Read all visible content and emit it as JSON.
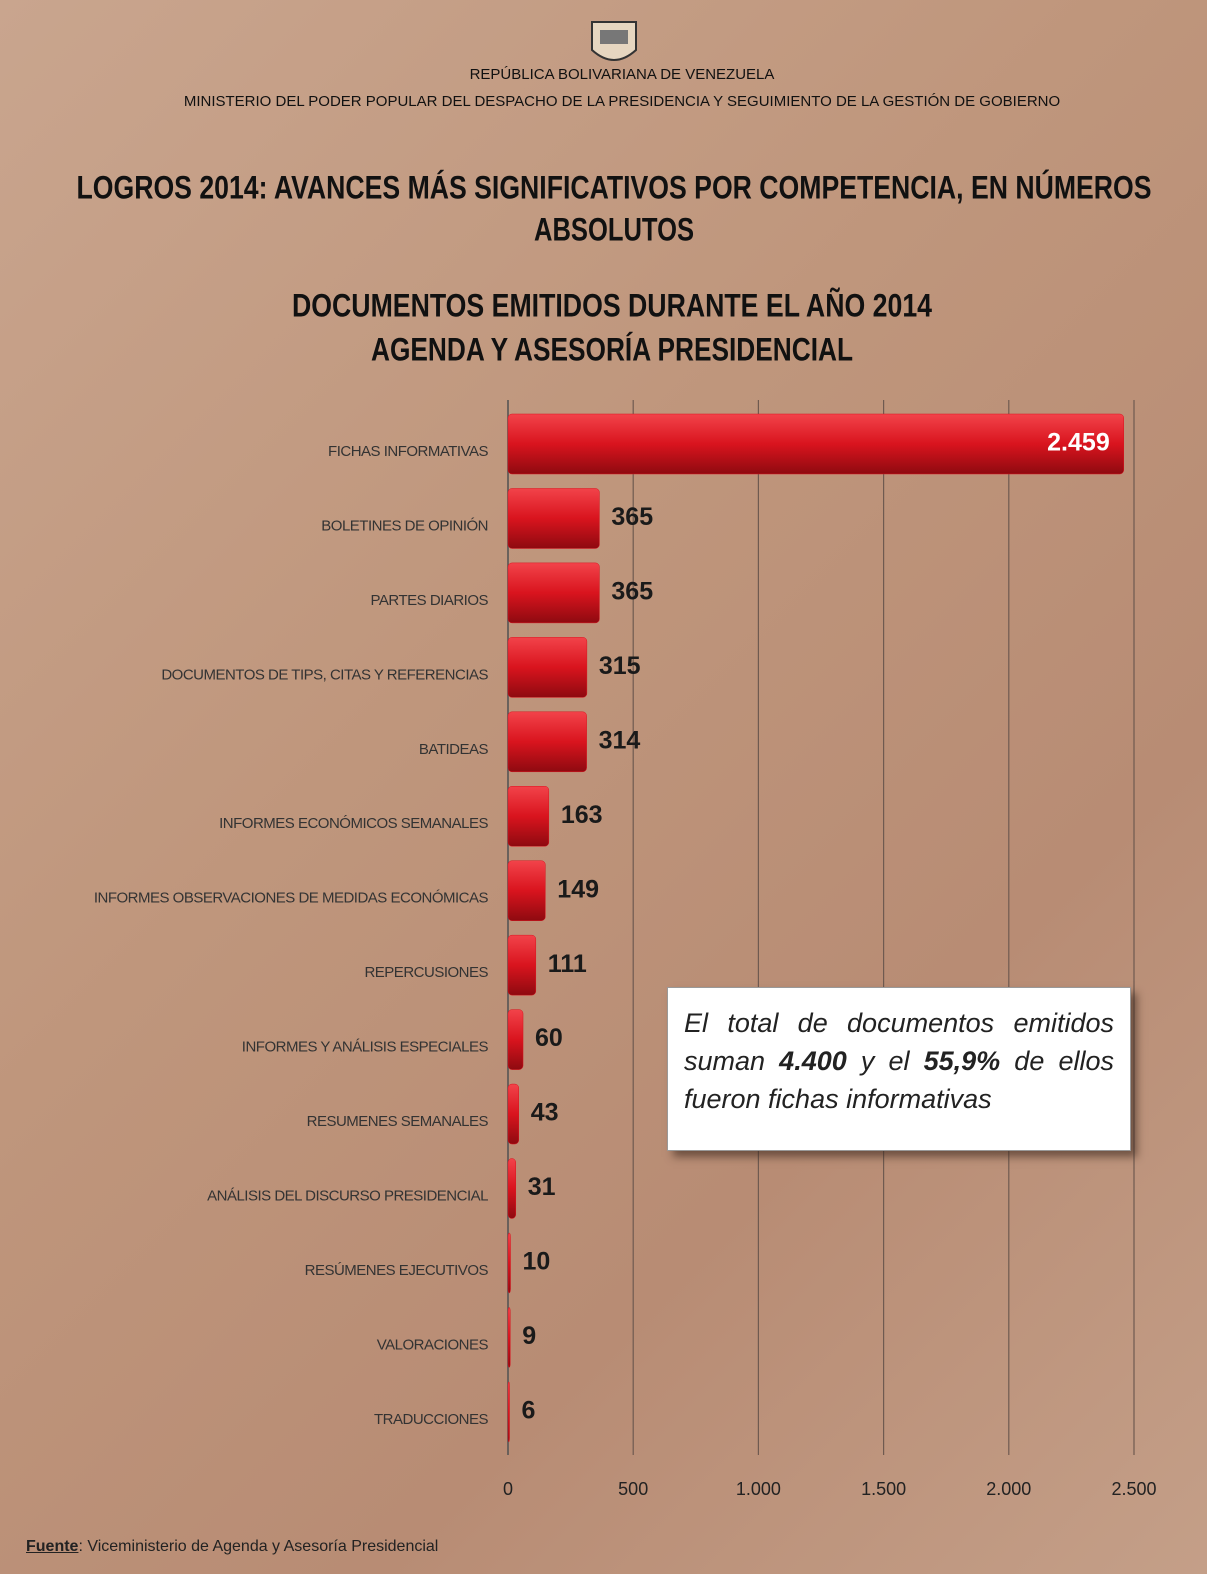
{
  "header": {
    "country": "REPÚBLICA BOLIVARIANA DE VENEZUELA",
    "ministry": "MINISTERIO DEL PODER POPULAR DEL DESPACHO DE LA PRESIDENCIA Y SEGUIMIENTO DE LA GESTIÓN DE GOBIERNO",
    "title": [
      "LOGROS 2014: AVANCES MÁS SIGNIFICATIVOS POR COMPETENCIA, EN NÚMEROS",
      "ABSOLUTOS"
    ]
  },
  "chart_data": {
    "type": "hbar",
    "title": [
      "DOCUMENTOS EMITIDOS DURANTE EL AÑO 2014",
      "AGENDA Y ASESORÍA PRESIDENCIAL"
    ],
    "categories": [
      "FICHAS INFORMATIVAS",
      "BOLETINES DE OPINIÓN",
      "PARTES DIARIOS",
      "DOCUMENTOS DE TIPS, CITAS Y REFERENCIAS",
      "BATIDEAS",
      "INFORMES ECONÓMICOS SEMANALES",
      "INFORMES OBSERVACIONES DE MEDIDAS ECONÓMICAS",
      "REPERCUSIONES",
      "INFORMES Y ANÁLISIS ESPECIALES",
      "RESUMENES SEMANALES",
      "ANÁLISIS DEL DISCURSO PRESIDENCIAL",
      "RESÚMENES EJECUTIVOS",
      "VALORACIONES",
      "TRADUCCIONES"
    ],
    "values": [
      2459,
      365,
      365,
      315,
      314,
      163,
      149,
      111,
      60,
      43,
      31,
      10,
      9,
      6
    ],
    "value_labels": [
      "2.459",
      "365",
      "365",
      "315",
      "314",
      "163",
      "149",
      "111",
      "60",
      "43",
      "31",
      "10",
      "9",
      "6"
    ],
    "color": "#d9141e",
    "xlim": [
      0,
      2500
    ],
    "xticks": [
      0,
      500,
      {
        "value": 1000,
        "label": "1.000"
      },
      {
        "value": 1500,
        "label": "1.500"
      },
      {
        "value": 2000,
        "label": "2.000"
      },
      {
        "value": 2500,
        "label": "2.500"
      }
    ],
    "grid": true,
    "annotation": [
      "El total de documentos emitidos suman ",
      "4.400",
      " y el ",
      "55,9%",
      " de ellos fueron fichas informativas"
    ],
    "source": [
      "Fuente",
      ": Viceministerio de Agenda y Asesoría Presidencial"
    ]
  }
}
